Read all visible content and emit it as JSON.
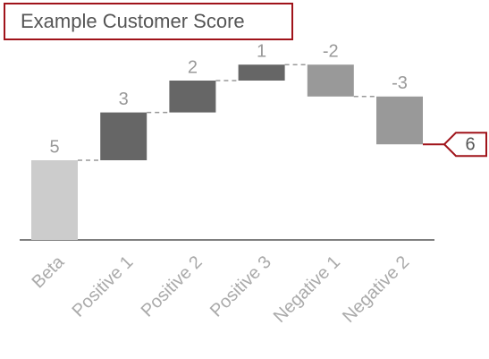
{
  "chart_data": {
    "type": "waterfall",
    "title": "Example Customer Score",
    "categories": [
      "Beta",
      "Positive 1",
      "Positive 2",
      "Positive 3",
      "Negative 1",
      "Negative 2"
    ],
    "values": [
      5,
      3,
      2,
      1,
      -2,
      -3
    ],
    "total": 6,
    "base_color": "#cccccc",
    "increase_color": "#666666",
    "decrease_color": "#999999"
  }
}
